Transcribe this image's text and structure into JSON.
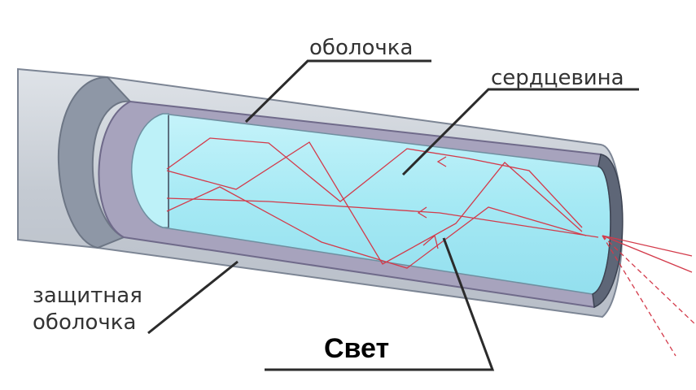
{
  "labels": {
    "cladding": "оболочка",
    "core": "сердцевина",
    "jacket_line1": "защитная",
    "jacket_line2": "оболочка",
    "light": "Свет"
  },
  "colors": {
    "jacket": "#c9cfd6",
    "jacket_dark": "#8d96a6",
    "cladding": "#9d98b4",
    "core": "#a9ecf5",
    "ray": "#d33a4a",
    "leader": "#2b2b2b"
  }
}
